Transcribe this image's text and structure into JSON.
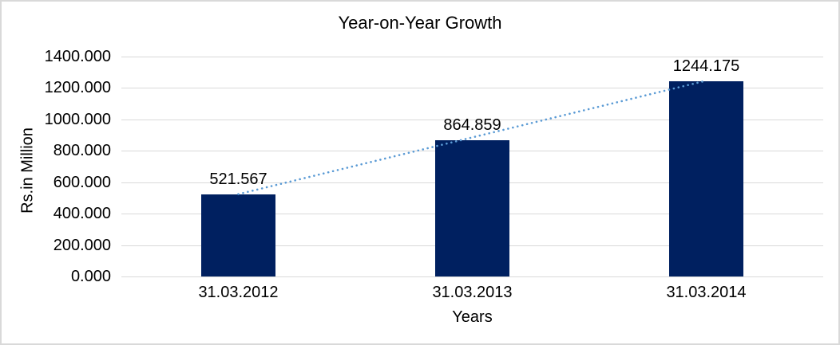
{
  "chart_data": {
    "type": "bar",
    "title": "Year-on-Year Growth",
    "xlabel": "Years",
    "ylabel": "Rs.in Million",
    "categories": [
      "31.03.2012",
      "31.03.2013",
      "31.03.2014"
    ],
    "values": [
      521.567,
      864.859,
      1244.175
    ],
    "value_labels": [
      "521.567",
      "864.859",
      "1244.175"
    ],
    "ylim": [
      0,
      1400
    ],
    "ytick_step": 200,
    "ytick_labels": [
      "0.000",
      "200.000",
      "400.000",
      "600.000",
      "800.000",
      "1000.000",
      "1200.000",
      "1400.000"
    ],
    "grid": true,
    "legend": "none",
    "bar_color": "#002060",
    "gridline_color": "#d9d9d9",
    "text_color": "#000000",
    "trendline": {
      "style": "dotted",
      "color": "#5b9bd5"
    }
  }
}
